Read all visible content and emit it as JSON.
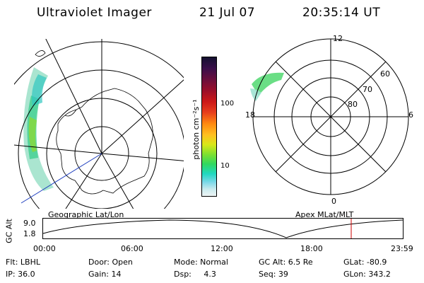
{
  "header": {
    "title": "Ultraviolet Imager",
    "date": "21 Jul 07",
    "time": "20:35:14 UT"
  },
  "left_panel": {
    "caption": "Geographic Lat/Lon"
  },
  "right_panel": {
    "caption": "Apex MLat/MLT",
    "mlt_labels": [
      "12",
      "18",
      "6",
      "0"
    ],
    "mlat_labels": [
      "60",
      "70",
      "80"
    ]
  },
  "colorbar": {
    "label": "photon cm⁻²s⁻¹",
    "ticks": [
      "100",
      "10"
    ],
    "colors": [
      "#141030",
      "#3a0f4a",
      "#6a0f3c",
      "#9a0f2a",
      "#cc1818",
      "#e8401c",
      "#ff8a10",
      "#ffc020",
      "#d8e818",
      "#7ee030",
      "#30d860",
      "#20d8c0",
      "#7ad8e8",
      "#c8eaee",
      "#eef5f5"
    ]
  },
  "timeline": {
    "axis_label": "GC Alt",
    "y_ticks": [
      "9.0",
      "1.8"
    ],
    "x_ticks": [
      "00:00",
      "06:00",
      "12:00",
      "18:00",
      "23:59"
    ],
    "current_marker_color": "#cc0000"
  },
  "info": {
    "row1": [
      "Flt: LBHL",
      "Door: Open",
      "Mode: Normal",
      "GC Alt: 6.5 Re",
      "GLat: -80.9"
    ],
    "row2": [
      "IP: 36.0",
      "Gain: 14",
      "Dsp:     4.3",
      "Seq: 39",
      "GLon: 343.2"
    ]
  }
}
